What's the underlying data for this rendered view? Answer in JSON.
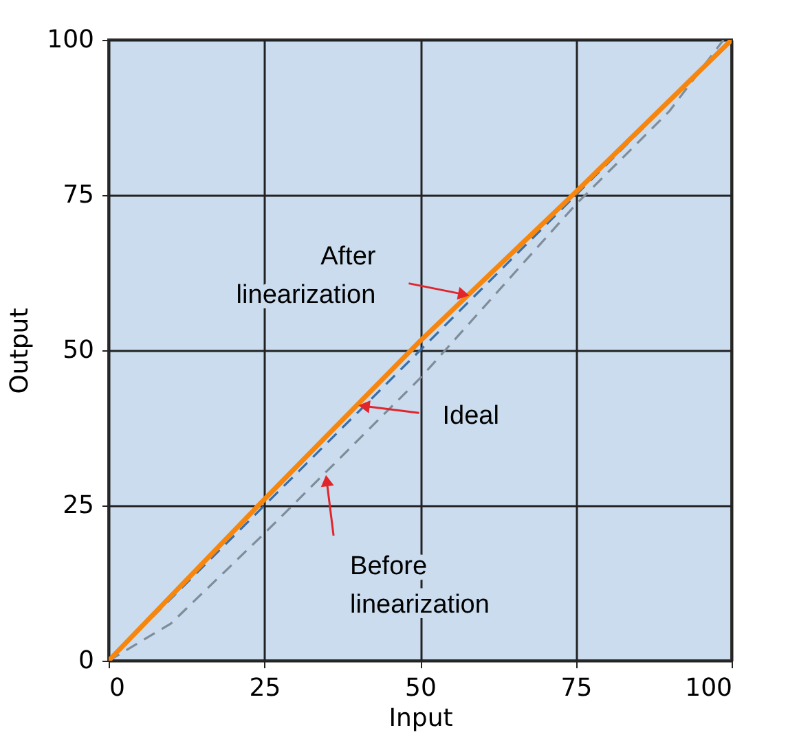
{
  "chart_data": {
    "type": "line",
    "xlabel": "Input",
    "ylabel": "Output",
    "xlim": [
      0,
      100
    ],
    "ylim": [
      0,
      100
    ],
    "xticks": [
      0,
      25,
      50,
      75,
      100
    ],
    "yticks": [
      0,
      25,
      50,
      75,
      100
    ],
    "grid": true,
    "series": [
      {
        "color": "#7f8c99",
        "line_style": "dashed",
        "x": [
          0,
          10,
          25,
          50,
          75,
          90,
          98.7
        ],
        "values": [
          0,
          6,
          20.5,
          45.5,
          73.5,
          88.5,
          100
        ]
      },
      {
        "color": "#3a6ea5",
        "line_style": "dashed",
        "x": [
          0,
          100
        ],
        "values": [
          0,
          100
        ]
      },
      {
        "color": "#f7860f",
        "line_style": "solid",
        "x": [
          0,
          25,
          50,
          75,
          100
        ],
        "values": [
          0,
          26,
          51.5,
          75.5,
          100
        ]
      }
    ],
    "annotations": [
      {
        "text": "After\nlinearization",
        "x": 57,
        "y": 59
      },
      {
        "text": "Ideal",
        "x": 41,
        "y": 41
      },
      {
        "text": "Before\nlinearization",
        "x": 35,
        "y": 29
      }
    ]
  }
}
